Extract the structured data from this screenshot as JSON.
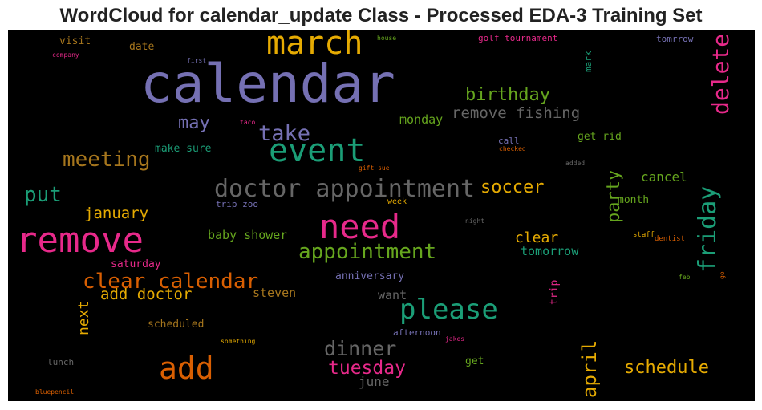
{
  "chart_data": {
    "type": "wordcloud",
    "title": "WordCloud for calendar_update Class - Processed EDA-3 Training Set",
    "background": "#000000",
    "words": [
      {
        "text": "calendar",
        "color": "#7570b3",
        "weight": 66
      },
      {
        "text": "march",
        "color": "#e6ab02",
        "weight": 40
      },
      {
        "text": "event",
        "color": "#1b9e77",
        "weight": 40
      },
      {
        "text": "remove",
        "color": "#e7298a",
        "weight": 44
      },
      {
        "text": "need",
        "color": "#e7298a",
        "weight": 42
      },
      {
        "text": "add",
        "color": "#d95f02",
        "weight": 38
      },
      {
        "text": "please",
        "color": "#1b9e77",
        "weight": 34
      },
      {
        "text": "doctor appointment",
        "color": "#666666",
        "weight": 30
      },
      {
        "text": "friday",
        "color": "#1b9e77",
        "weight": 30
      },
      {
        "text": "delete",
        "color": "#e7298a",
        "weight": 28
      },
      {
        "text": "take",
        "color": "#7570b3",
        "weight": 27
      },
      {
        "text": "meeting",
        "color": "#a6761d",
        "weight": 26
      },
      {
        "text": "put",
        "color": "#1b9e77",
        "weight": 26
      },
      {
        "text": "appointment",
        "color": "#66a61e",
        "weight": 26
      },
      {
        "text": "clear calendar",
        "color": "#d95f02",
        "weight": 26
      },
      {
        "text": "dinner",
        "color": "#666666",
        "weight": 25
      },
      {
        "text": "tuesday",
        "color": "#e7298a",
        "weight": 23
      },
      {
        "text": "april",
        "color": "#e6ab02",
        "weight": 24
      },
      {
        "text": "schedule",
        "color": "#e6ab02",
        "weight": 22
      },
      {
        "text": "soccer",
        "color": "#e6ab02",
        "weight": 22
      },
      {
        "text": "birthday",
        "color": "#66a61e",
        "weight": 22
      },
      {
        "text": "may",
        "color": "#7570b3",
        "weight": 22
      },
      {
        "text": "party",
        "color": "#66a61e",
        "weight": 22
      },
      {
        "text": "remove fishing",
        "color": "#666666",
        "weight": 19
      },
      {
        "text": "add doctor",
        "color": "#e6ab02",
        "weight": 19
      },
      {
        "text": "january",
        "color": "#e6ab02",
        "weight": 19
      },
      {
        "text": "clear",
        "color": "#e6ab02",
        "weight": 18
      },
      {
        "text": "next",
        "color": "#e6ab02",
        "weight": 18
      },
      {
        "text": "june",
        "color": "#666666",
        "weight": 16
      },
      {
        "text": "cancel",
        "color": "#66a61e",
        "weight": 16
      },
      {
        "text": "tomorrow",
        "color": "#1b9e77",
        "weight": 15
      },
      {
        "text": "monday",
        "color": "#66a61e",
        "weight": 15
      },
      {
        "text": "want",
        "color": "#666666",
        "weight": 15
      },
      {
        "text": "steven",
        "color": "#a6761d",
        "weight": 15
      },
      {
        "text": "baby shower",
        "color": "#66a61e",
        "weight": 15
      },
      {
        "text": "month",
        "color": "#66a61e",
        "weight": 13
      },
      {
        "text": "trip",
        "color": "#e7298a",
        "weight": 13
      },
      {
        "text": "get rid",
        "color": "#66a61e",
        "weight": 13
      },
      {
        "text": "make sure",
        "color": "#1b9e77",
        "weight": 13
      },
      {
        "text": "visit",
        "color": "#a6761d",
        "weight": 13
      },
      {
        "text": "date",
        "color": "#a6761d",
        "weight": 13
      },
      {
        "text": "scheduled",
        "color": "#a6761d",
        "weight": 13
      },
      {
        "text": "saturday",
        "color": "#e7298a",
        "weight": 13
      },
      {
        "text": "anniversary",
        "color": "#7570b3",
        "weight": 13
      },
      {
        "text": "get",
        "color": "#66a61e",
        "weight": 13
      },
      {
        "text": "afternoon",
        "color": "#7570b3",
        "weight": 11
      },
      {
        "text": "lunch",
        "color": "#666666",
        "weight": 11
      },
      {
        "text": "trip zoo",
        "color": "#7570b3",
        "weight": 11
      },
      {
        "text": "golf tournament",
        "color": "#e7298a",
        "weight": 11
      },
      {
        "text": "tomrrow",
        "color": "#7570b3",
        "weight": 11
      },
      {
        "text": "mark",
        "color": "#1b9e77",
        "weight": 11
      },
      {
        "text": "call",
        "color": "#7570b3",
        "weight": 11
      },
      {
        "text": "week",
        "color": "#e6ab02",
        "weight": 10
      },
      {
        "text": "staff",
        "color": "#e6ab02",
        "weight": 9
      },
      {
        "text": "dentist",
        "color": "#d95f02",
        "weight": 9
      },
      {
        "text": "feb",
        "color": "#66a61e",
        "weight": 8
      },
      {
        "text": "go",
        "color": "#d95f02",
        "weight": 8
      },
      {
        "text": "house",
        "color": "#66a61e",
        "weight": 8
      },
      {
        "text": "first",
        "color": "#7570b3",
        "weight": 8
      },
      {
        "text": "company",
        "color": "#e7298a",
        "weight": 8
      },
      {
        "text": "taco",
        "color": "#e7298a",
        "weight": 8
      },
      {
        "text": "checked",
        "color": "#d95f02",
        "weight": 8
      },
      {
        "text": "gift sue",
        "color": "#d95f02",
        "weight": 8
      },
      {
        "text": "added",
        "color": "#666666",
        "weight": 8
      },
      {
        "text": "night",
        "color": "#666666",
        "weight": 8
      },
      {
        "text": "something",
        "color": "#e6ab02",
        "weight": 8
      },
      {
        "text": "jakes",
        "color": "#e7298a",
        "weight": 8
      },
      {
        "text": "bluepencil",
        "color": "#d95f02",
        "weight": 8
      }
    ]
  }
}
